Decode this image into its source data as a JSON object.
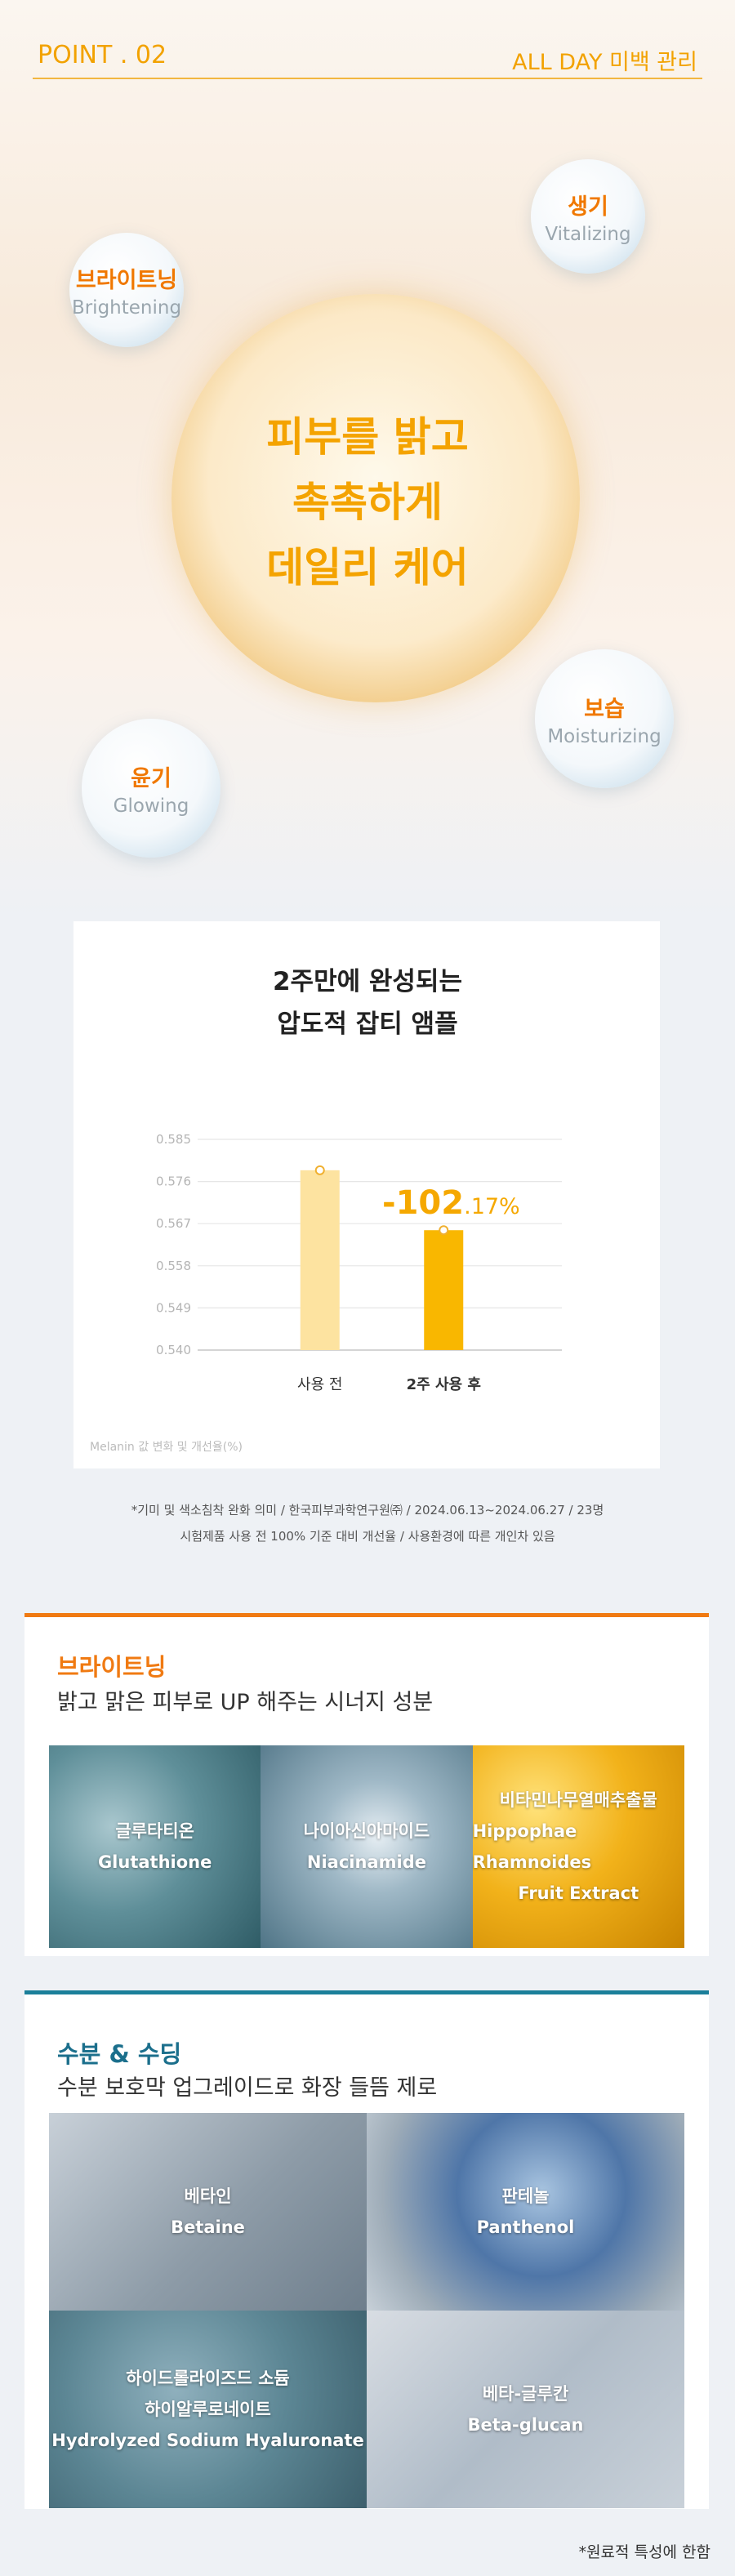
{
  "header": {
    "point": "POINT . 02",
    "right": "ALL DAY 미백 관리"
  },
  "hero": {
    "headline": [
      "피부를 밝고",
      "촉촉하게",
      "데일리 케어"
    ],
    "bubbles": [
      {
        "ko": "브라이트닝",
        "en": "Brightening"
      },
      {
        "ko": "생기",
        "en": "Vitalizing"
      },
      {
        "ko": "보습",
        "en": "Moisturizing"
      },
      {
        "ko": "윤기",
        "en": "Glowing"
      }
    ]
  },
  "chart_data": {
    "type": "bar",
    "title": [
      "2주만에 완성되는",
      "압도적 잡티 앰플"
    ],
    "categories": [
      "사용 전",
      "2주 사용 후"
    ],
    "values": [
      0.5784,
      0.5656
    ],
    "colors": [
      "#fde3a0",
      "#f9b700"
    ],
    "ylim": [
      0.54,
      0.585
    ],
    "yticks": [
      {
        "value": 0.54,
        "label": "0.540"
      },
      0.549,
      0.558,
      0.567,
      0.576,
      0.585
    ],
    "grid": true,
    "annotation": "-102.17%",
    "axis_note": "Melanin 값 변화 및 개선율(%)"
  },
  "notes": [
    "*기미 및 색소침착 완화 의미 / 한국피부과학연구원㈜ / 2024.06.13~2024.06.27 / 23명",
    "시험제품 사용 전 100% 기준 대비 개선율 / 사용환경에 따른 개인차 있음"
  ],
  "sections": [
    {
      "title": "브라이트닝",
      "subtitle": "밝고 맑은 피부로 UP 해주는 시너지 성분",
      "tiles": [
        {
          "lines": [
            "글루타티온",
            "Glutathione"
          ]
        },
        {
          "lines": [
            "나이아신아마이드",
            "Niacinamide"
          ]
        },
        {
          "lines": [
            "비타민나무열매추출물",
            "Hippophae Rhamnoides",
            "Fruit Extract"
          ]
        }
      ]
    },
    {
      "title": "수분 & 수딩",
      "subtitle": "수분 보호막 업그레이드로 화장 들뜸 제로",
      "tiles": [
        {
          "lines": [
            "베타인",
            "Betaine"
          ]
        },
        {
          "lines": [
            "판테놀",
            "Panthenol"
          ]
        },
        {
          "lines": [
            "하이드롤라이즈드 소듐",
            "하이알루로네이트",
            "Hydrolyzed Sodium Hyaluronate"
          ]
        },
        {
          "lines": [
            "베타-글루칸",
            "Beta-glucan"
          ]
        }
      ]
    }
  ],
  "footnote": "*원료적 특성에 한함"
}
